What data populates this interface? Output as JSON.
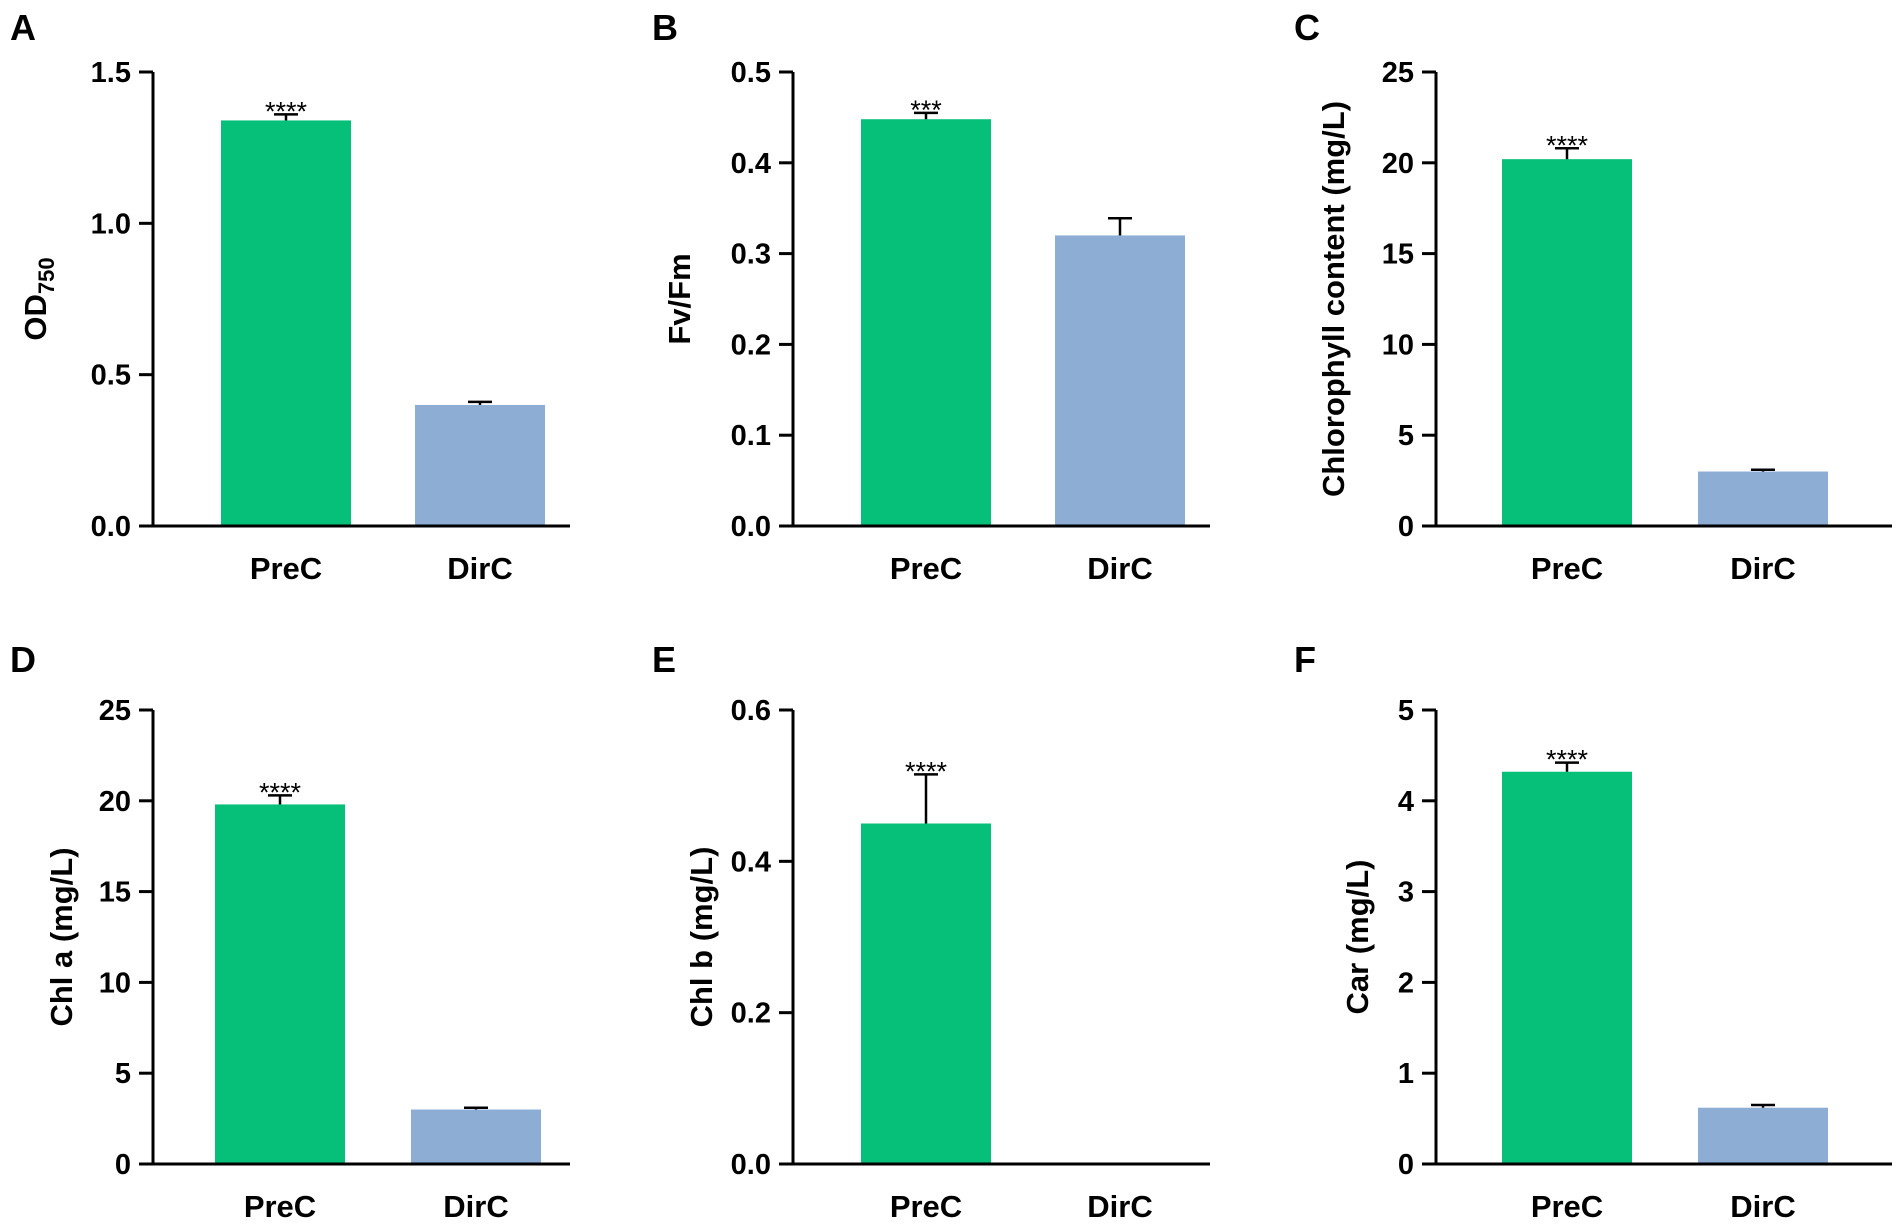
{
  "chart_data": [
    {
      "panel": "A",
      "type": "bar",
      "title": "",
      "xlabel": "",
      "ylabel": "OD",
      "ylabel_sub": "750",
      "categories": [
        "PreC",
        "DirC"
      ],
      "values": [
        1.34,
        0.4
      ],
      "errors": [
        0.02,
        0.01
      ],
      "significance": [
        "****",
        ""
      ],
      "colors": [
        "#06bf78",
        "#8eadd4"
      ],
      "ylim": [
        0,
        1.5
      ],
      "yticks": [
        0.0,
        0.5,
        1.0,
        1.5
      ],
      "ytick_labels": [
        "0.0",
        "0.5",
        "1.0",
        "1.5"
      ]
    },
    {
      "panel": "B",
      "type": "bar",
      "title": "",
      "xlabel": "",
      "ylabel": "Fv/Fm",
      "categories": [
        "PreC",
        "DirC"
      ],
      "values": [
        0.448,
        0.32
      ],
      "errors": [
        0.007,
        0.019
      ],
      "significance": [
        "***",
        ""
      ],
      "colors": [
        "#06bf78",
        "#8eadd4"
      ],
      "ylim": [
        0,
        0.5
      ],
      "yticks": [
        0.0,
        0.1,
        0.2,
        0.3,
        0.4,
        0.5
      ],
      "ytick_labels": [
        "0.0",
        "0.1",
        "0.2",
        "0.3",
        "0.4",
        "0.5"
      ]
    },
    {
      "panel": "C",
      "type": "bar",
      "title": "",
      "xlabel": "",
      "ylabel": "Chlorophyll content (mg/L)",
      "categories": [
        "PreC",
        "DirC"
      ],
      "values": [
        20.2,
        3.0
      ],
      "errors": [
        0.6,
        0.1
      ],
      "significance": [
        "****",
        ""
      ],
      "colors": [
        "#06bf78",
        "#8eadd4"
      ],
      "ylim": [
        0,
        25
      ],
      "yticks": [
        0,
        5,
        10,
        15,
        20,
        25
      ],
      "ytick_labels": [
        "0",
        "5",
        "10",
        "15",
        "20",
        "25"
      ]
    },
    {
      "panel": "D",
      "type": "bar",
      "title": "",
      "xlabel": "",
      "ylabel": "Chl a (mg/L)",
      "categories": [
        "PreC",
        "DirC"
      ],
      "values": [
        19.8,
        3.0
      ],
      "errors": [
        0.5,
        0.1
      ],
      "significance": [
        "****",
        ""
      ],
      "colors": [
        "#06bf78",
        "#8eadd4"
      ],
      "ylim": [
        0,
        25
      ],
      "yticks": [
        0,
        5,
        10,
        15,
        20,
        25
      ],
      "ytick_labels": [
        "0",
        "5",
        "10",
        "15",
        "20",
        "25"
      ]
    },
    {
      "panel": "E",
      "type": "bar",
      "title": "",
      "xlabel": "",
      "ylabel": "Chl b (mg/L)",
      "categories": [
        "PreC",
        "DirC"
      ],
      "values": [
        0.45,
        0.0
      ],
      "errors": [
        0.065,
        0.0
      ],
      "significance": [
        "****",
        ""
      ],
      "colors": [
        "#06bf78",
        "#8eadd4"
      ],
      "ylim": [
        0,
        0.6
      ],
      "yticks": [
        0.0,
        0.2,
        0.4,
        0.6
      ],
      "ytick_labels": [
        "0.0",
        "0.2",
        "0.4",
        "0.6"
      ]
    },
    {
      "panel": "F",
      "type": "bar",
      "title": "",
      "xlabel": "",
      "ylabel": "Car (mg/L)",
      "categories": [
        "PreC",
        "DirC"
      ],
      "values": [
        4.32,
        0.62
      ],
      "errors": [
        0.1,
        0.03
      ],
      "significance": [
        "****",
        ""
      ],
      "colors": [
        "#06bf78",
        "#8eadd4"
      ],
      "ylim": [
        0,
        5
      ],
      "yticks": [
        0,
        1,
        2,
        3,
        4,
        5
      ],
      "ytick_labels": [
        "0",
        "1",
        "2",
        "3",
        "4",
        "5"
      ]
    }
  ]
}
